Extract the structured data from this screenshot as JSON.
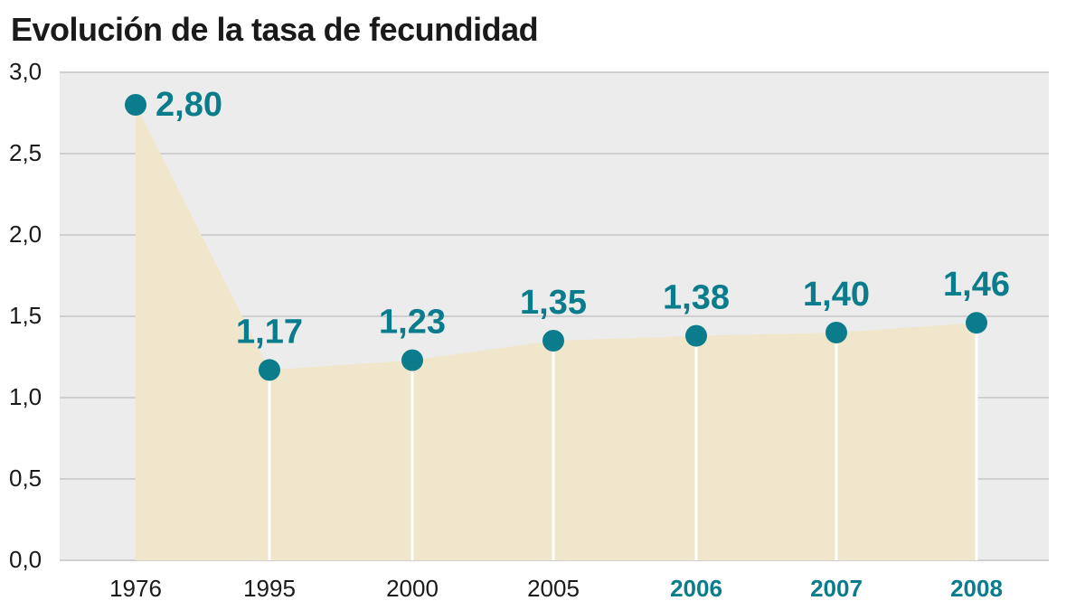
{
  "chart_data": {
    "type": "area",
    "title": "Evolución de la tasa de fecundidad",
    "x": [
      "1976",
      "1995",
      "2000",
      "2005",
      "2006",
      "2007",
      "2008"
    ],
    "values": [
      2.8,
      1.17,
      1.23,
      1.35,
      1.38,
      1.4,
      1.46
    ],
    "data_labels": [
      "2,80",
      "1,17",
      "1,23",
      "1,35",
      "1,38",
      "1,40",
      "1,46"
    ],
    "highlighted_x": [
      "2006",
      "2007",
      "2008"
    ],
    "yticks": [
      0,
      0.5,
      1.0,
      1.5,
      2.0,
      2.5,
      3.0
    ],
    "ytick_labels": [
      "0,0",
      "0,5",
      "1,0",
      "1,5",
      "2,0",
      "2,5",
      "3,0"
    ],
    "ylim": [
      0,
      3.0
    ],
    "xlabel": "",
    "ylabel": "",
    "grid": true,
    "colors": {
      "area": "#efe6cc",
      "marker": "#0a7c8c",
      "label": "#0a7c8c",
      "grid": "#cfcfcf",
      "drop_line": "#ffffff",
      "plot_bg": "#ececec"
    }
  }
}
